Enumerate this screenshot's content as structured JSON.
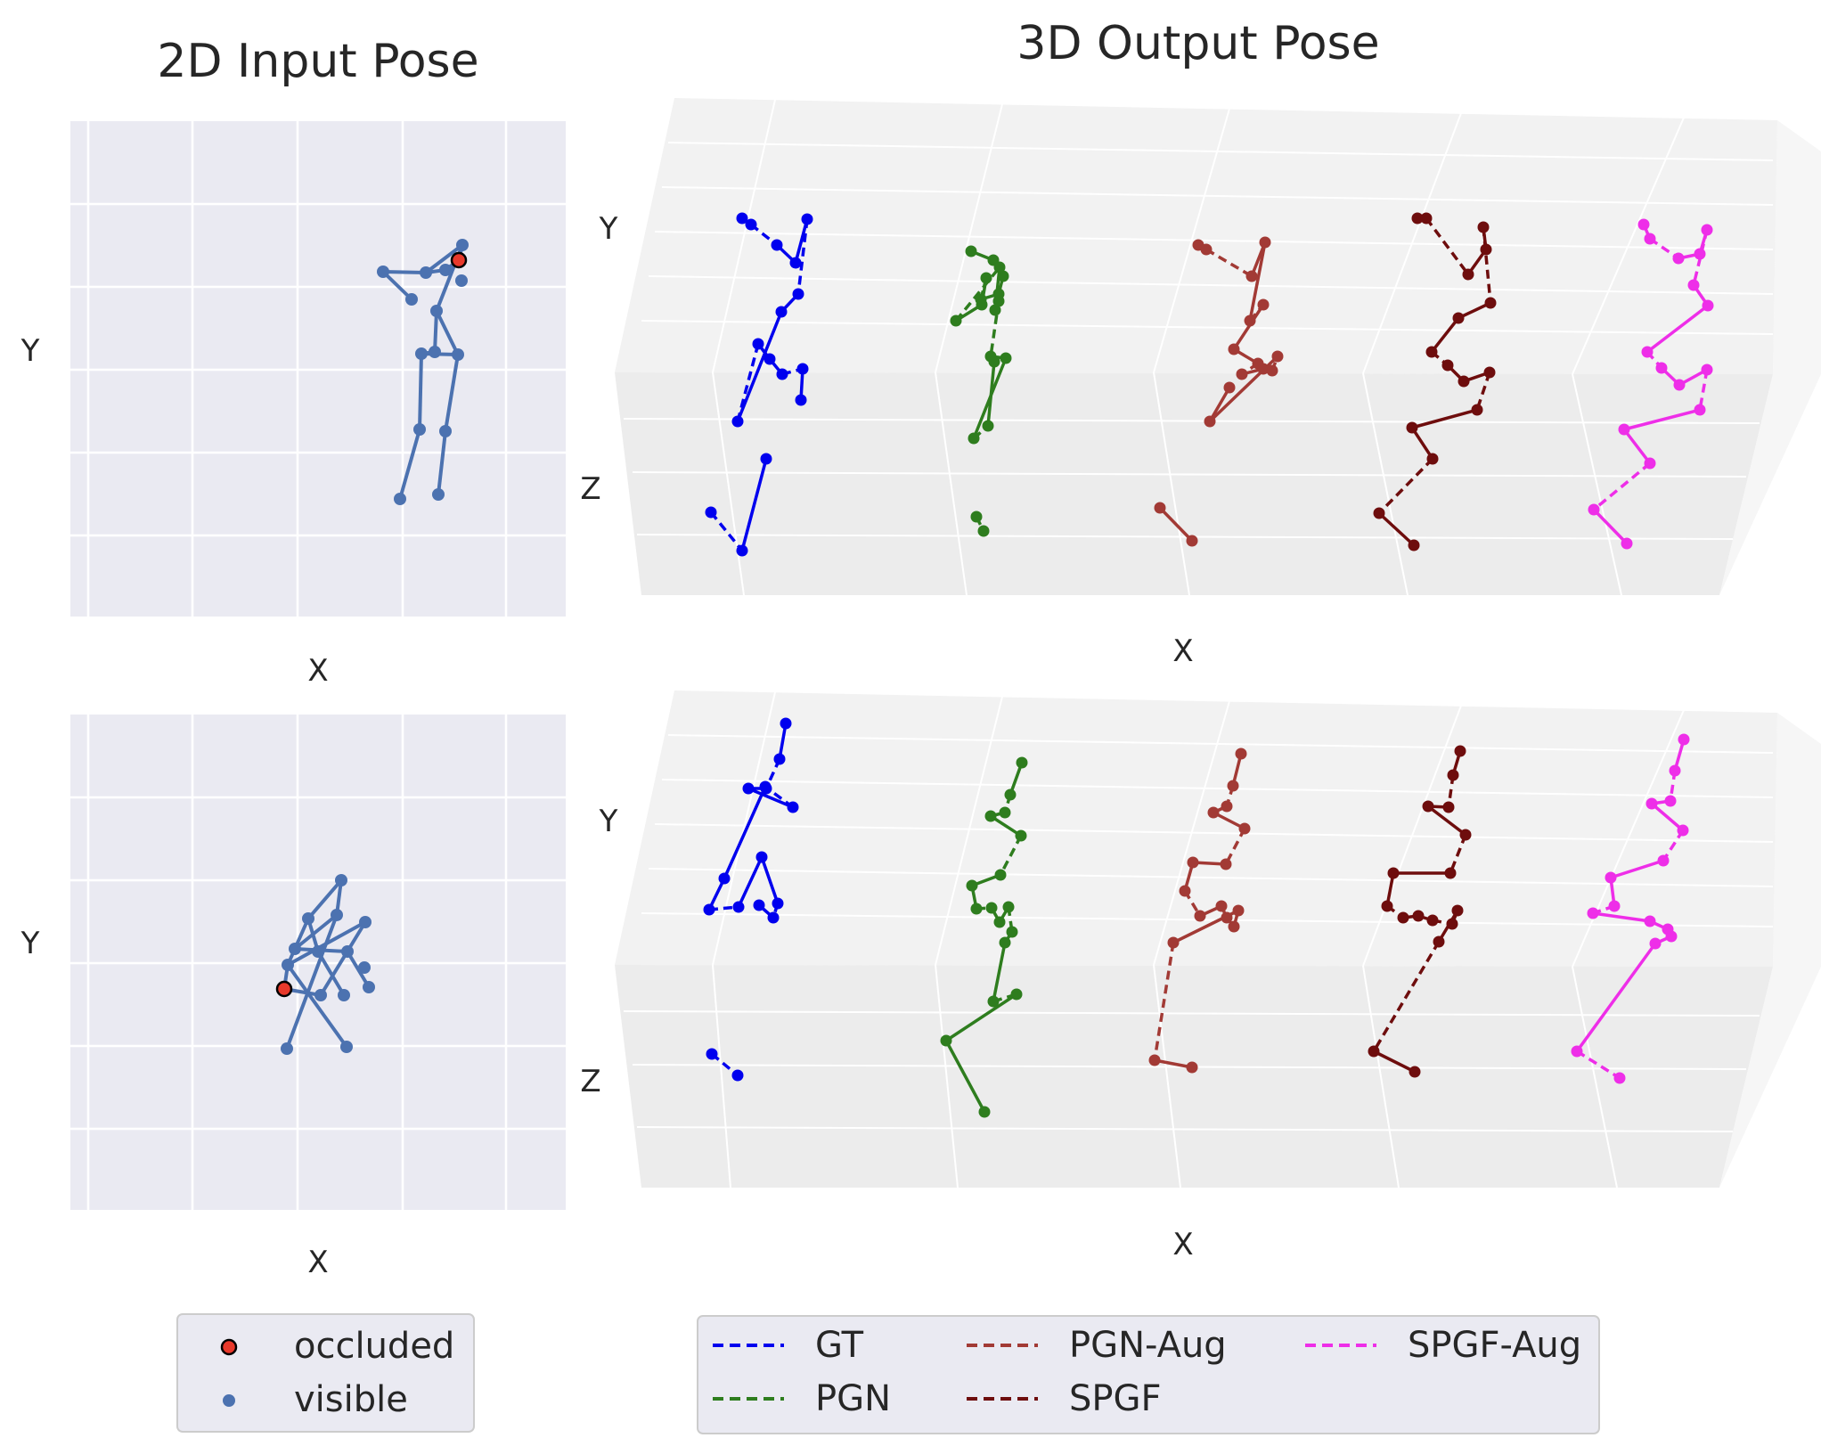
{
  "titles": {
    "left": "2D Input Pose",
    "right": "3D Output Pose"
  },
  "axes": {
    "x": "X",
    "y": "Y",
    "z": "Z"
  },
  "legend_2d": {
    "occluded": "occluded",
    "visible": "visible"
  },
  "legend_3d": [
    "GT",
    "PGN",
    "PGN-Aug",
    "SPGF",
    "SPGF-Aug"
  ],
  "colors": {
    "pose2d": "#4c72b0",
    "occluded": "#e8392b",
    "GT": "#0000ee",
    "PGN": "#2e7d1e",
    "PGN-Aug": "#a23a35",
    "SPGF": "#6e0d0d",
    "SPGF-Aug": "#ee2ee8"
  },
  "chart_data": [
    {
      "type": "scatter",
      "title": "2D Input Pose",
      "xlabel": "X",
      "ylabel": "Y",
      "grid": true,
      "legend": "below",
      "series": [
        {
          "name": "visible",
          "points": [
            [
              430,
              305
            ],
            [
              478,
              306
            ],
            [
              500,
              303
            ],
            [
              519,
              275
            ],
            [
              518,
              315
            ],
            [
              462,
              336
            ],
            [
              490,
              349
            ],
            [
              488,
              395
            ],
            [
              514,
              398
            ],
            [
              473,
              397
            ],
            [
              471,
              482
            ],
            [
              500,
              484
            ],
            [
              449,
              560
            ],
            [
              492,
              555
            ]
          ]
        },
        {
          "name": "occluded",
          "points": [
            [
              515,
              292
            ]
          ]
        }
      ]
    },
    {
      "type": "scatter",
      "title": "",
      "xlabel": "X",
      "ylabel": "Y",
      "grid": true,
      "series": [
        {
          "name": "visible",
          "points": [
            [
              383,
              988
            ],
            [
              346,
              1031
            ],
            [
              378,
              1027
            ],
            [
              331,
              1065
            ],
            [
              357,
              1068
            ],
            [
              390,
              1068
            ],
            [
              323,
              1083
            ],
            [
              410,
              1035
            ],
            [
              409,
              1086
            ],
            [
              360,
              1117
            ],
            [
              386,
              1117
            ],
            [
              414,
              1108
            ],
            [
              322,
              1177
            ],
            [
              389,
              1175
            ]
          ]
        },
        {
          "name": "occluded",
          "points": [
            [
              319,
              1110
            ]
          ]
        }
      ]
    },
    {
      "type": "line",
      "title": "3D Output Pose",
      "xlabel": "X",
      "ylabel": "Y",
      "zlabel": "Z",
      "legend": "below",
      "series": [
        {
          "name": "GT",
          "points": [
            [
              833,
              245
            ],
            [
              843,
              252
            ],
            [
              872,
              275
            ],
            [
              893,
              295
            ],
            [
              906,
              246
            ],
            [
              896,
              330
            ],
            [
              877,
              350
            ],
            [
              828,
              473
            ],
            [
              851,
              386
            ],
            [
              864,
              403
            ],
            [
              878,
              420
            ],
            [
              901,
              414
            ],
            [
              899,
              449
            ],
            [
              798,
              575
            ],
            [
              833,
              618
            ],
            [
              860,
              515
            ]
          ]
        },
        {
          "name": "PGN",
          "points": [
            [
              1090,
              282
            ],
            [
              1115,
              292
            ],
            [
              1126,
              310
            ],
            [
              1121,
              330
            ],
            [
              1101,
              336
            ],
            [
              1107,
              312
            ],
            [
              1102,
              342
            ],
            [
              1073,
              360
            ],
            [
              1122,
              300
            ],
            [
              1117,
              348
            ],
            [
              1121,
              338
            ],
            [
              1112,
              400
            ],
            [
              1129,
              402
            ],
            [
              1093,
              492
            ],
            [
              1109,
              478
            ],
            [
              1116,
              406
            ],
            [
              1096,
              580
            ],
            [
              1104,
              596
            ]
          ]
        },
        {
          "name": "PGN-Aug",
          "points": [
            [
              1345,
              275
            ],
            [
              1354,
              280
            ],
            [
              1405,
              310
            ],
            [
              1420,
              272
            ],
            [
              1403,
              360
            ],
            [
              1418,
              342
            ],
            [
              1385,
              392
            ],
            [
              1412,
              408
            ],
            [
              1394,
              420
            ],
            [
              1418,
              414
            ],
            [
              1428,
              416
            ],
            [
              1434,
              400
            ],
            [
              1358,
              473
            ],
            [
              1380,
              435
            ],
            [
              1302,
              570
            ],
            [
              1338,
              607
            ]
          ]
        },
        {
          "name": "SPGF",
          "points": [
            [
              1591,
              245
            ],
            [
              1601,
              245
            ],
            [
              1648,
              308
            ],
            [
              1668,
              280
            ],
            [
              1665,
              255
            ],
            [
              1673,
              340
            ],
            [
              1637,
              357
            ],
            [
              1607,
              395
            ],
            [
              1625,
              410
            ],
            [
              1643,
              428
            ],
            [
              1672,
              418
            ],
            [
              1658,
              460
            ],
            [
              1585,
              480
            ],
            [
              1608,
              515
            ],
            [
              1548,
              576
            ],
            [
              1587,
              612
            ]
          ]
        },
        {
          "name": "SPGF-Aug",
          "points": [
            [
              1845,
              252
            ],
            [
              1852,
              268
            ],
            [
              1884,
              290
            ],
            [
              1908,
              285
            ],
            [
              1916,
              258
            ],
            [
              1901,
              320
            ],
            [
              1917,
              343
            ],
            [
              1849,
              395
            ],
            [
              1865,
              413
            ],
            [
              1885,
              432
            ],
            [
              1916,
              415
            ],
            [
              1908,
              460
            ],
            [
              1823,
              482
            ],
            [
              1852,
              520
            ],
            [
              1789,
              572
            ],
            [
              1826,
              610
            ]
          ]
        },
        {
          "name": "GT",
          "points": [
            [
              882,
              812
            ],
            [
              875,
              852
            ],
            [
              860,
              885
            ],
            [
              840,
              885
            ],
            [
              890,
              906
            ],
            [
              859,
              883
            ],
            [
              813,
              986
            ],
            [
              796,
              1021
            ],
            [
              829,
              1018
            ],
            [
              855,
              962
            ],
            [
              873,
              1014
            ],
            [
              868,
              1030
            ],
            [
              852,
              1016
            ],
            [
              799,
              1183
            ],
            [
              828,
              1207
            ]
          ]
        },
        {
          "name": "PGN",
          "points": [
            [
              1147,
              856
            ],
            [
              1134,
              892
            ],
            [
              1128,
              912
            ],
            [
              1112,
              916
            ],
            [
              1146,
              938
            ],
            [
              1123,
              982
            ],
            [
              1091,
              994
            ],
            [
              1096,
              1020
            ],
            [
              1113,
              1019
            ],
            [
              1122,
              1035
            ],
            [
              1132,
              1018
            ],
            [
              1136,
              1046
            ],
            [
              1128,
              1058
            ],
            [
              1115,
              1124
            ],
            [
              1141,
              1116
            ],
            [
              1062,
              1168
            ],
            [
              1105,
              1248
            ]
          ]
        },
        {
          "name": "PGN-Aug",
          "points": [
            [
              1393,
              846
            ],
            [
              1384,
              882
            ],
            [
              1377,
              905
            ],
            [
              1362,
              912
            ],
            [
              1397,
              930
            ],
            [
              1376,
              970
            ],
            [
              1339,
              968
            ],
            [
              1330,
              1000
            ],
            [
              1347,
              1028
            ],
            [
              1371,
              1017
            ],
            [
              1377,
              1030
            ],
            [
              1385,
              1040
            ],
            [
              1390,
              1022
            ],
            [
              1317,
              1058
            ],
            [
              1296,
              1190
            ],
            [
              1338,
              1198
            ]
          ]
        },
        {
          "name": "SPGF",
          "points": [
            [
              1639,
              843
            ],
            [
              1631,
              870
            ],
            [
              1626,
              906
            ],
            [
              1603,
              905
            ],
            [
              1645,
              937
            ],
            [
              1628,
              980
            ],
            [
              1564,
              980
            ],
            [
              1557,
              1017
            ],
            [
              1575,
              1030
            ],
            [
              1592,
              1028
            ],
            [
              1608,
              1033
            ],
            [
              1630,
              1037
            ],
            [
              1636,
              1022
            ],
            [
              1615,
              1057
            ],
            [
              1542,
              1180
            ],
            [
              1588,
              1203
            ]
          ]
        },
        {
          "name": "SPGF-Aug",
          "points": [
            [
              1890,
              830
            ],
            [
              1880,
              865
            ],
            [
              1875,
              899
            ],
            [
              1854,
              902
            ],
            [
              1889,
              932
            ],
            [
              1867,
              966
            ],
            [
              1808,
              985
            ],
            [
              1812,
              1017
            ],
            [
              1788,
              1025
            ],
            [
              1852,
              1034
            ],
            [
              1872,
              1043
            ],
            [
              1876,
              1051
            ],
            [
              1858,
              1059
            ],
            [
              1770,
              1180
            ],
            [
              1818,
              1210
            ]
          ]
        }
      ]
    }
  ]
}
